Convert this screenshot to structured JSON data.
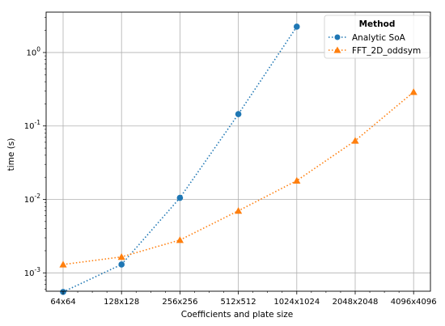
{
  "chart_data": {
    "type": "line",
    "xlabel": "Coefficients and plate size",
    "ylabel": "time (s)",
    "categories": [
      "64x64",
      "128x128",
      "256x256",
      "512x512",
      "1024x1024",
      "2048x2048",
      "4096x4096"
    ],
    "x_scale": "log2",
    "y_scale": "log",
    "ylim_exponents": [
      -3.25,
      0.55
    ],
    "y_ticks": [
      {
        "base": "10",
        "exp": "-3",
        "value": 0.001
      },
      {
        "base": "10",
        "exp": "-2",
        "value": 0.01
      },
      {
        "base": "10",
        "exp": "-1",
        "value": 0.1
      },
      {
        "base": "10",
        "exp": "0",
        "value": 1
      }
    ],
    "grid": true,
    "legend": {
      "title": "Method",
      "position": "top-right"
    },
    "series": [
      {
        "name": "Analytic SoA",
        "color": "#1f77b4",
        "marker": "circle",
        "linestyle": "dotted",
        "values": [
          0.00055,
          0.0013,
          0.0105,
          0.145,
          2.25,
          null,
          null
        ]
      },
      {
        "name": "FFT_2D_oddsym",
        "color": "#ff7f0e",
        "marker": "triangle",
        "linestyle": "dotted",
        "values": [
          0.0013,
          0.00165,
          0.0028,
          0.007,
          0.018,
          0.063,
          0.29
        ]
      }
    ]
  }
}
